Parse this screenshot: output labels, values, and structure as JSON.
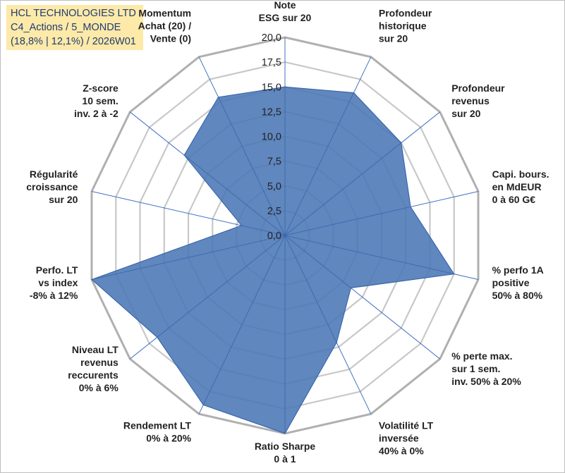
{
  "header": {
    "line1": "HCL TECHNOLOGIES LTD",
    "line2": "C4_Actions / 5_MONDE",
    "line3": "(18,8% | 12,1%) / 2026W01"
  },
  "colors": {
    "area_fill": "#4a76b5",
    "area_stroke": "#2f5fa8",
    "spoke": "#4472c4",
    "grid": "#c8c8c8",
    "outer_grid": "#b0b0b0",
    "title_bg": "#fde9a8",
    "title_text": "#1f3c72",
    "label_text": "#222222"
  },
  "chart_data": {
    "type": "radar",
    "rmin": 0,
    "rmax": 20,
    "ticks": [
      "0,0",
      "2,5",
      "5,0",
      "7,5",
      "10,0",
      "12,5",
      "15,0",
      "17,5",
      "20,0"
    ],
    "tick_values": [
      0,
      2.5,
      5,
      7.5,
      10,
      12.5,
      15,
      17.5,
      20
    ],
    "axes": [
      {
        "label": [
          "Note",
          "ESG sur 20"
        ],
        "value": 15.0
      },
      {
        "label": [
          "Profondeur",
          "historique",
          "sur 20"
        ],
        "value": 16.0
      },
      {
        "label": [
          "Profondeur",
          "revenus",
          "sur 20"
        ],
        "value": 15.0
      },
      {
        "label": [
          "Capi. bours.",
          "en MdEUR",
          "0 à 60 G€"
        ],
        "value": 13.0
      },
      {
        "label": [
          "% perfo 1A",
          "positive",
          "50% à 80%"
        ],
        "value": 17.5
      },
      {
        "label": [
          "% perte max.",
          "sur 1 sem.",
          "inv. 50% à 20%"
        ],
        "value": 8.5
      },
      {
        "label": [
          "Volatilité LT",
          "inversée",
          "40% à 0%"
        ],
        "value": 12.0
      },
      {
        "label": [
          "Ratio Sharpe",
          "0 à 1"
        ],
        "value": 20.0
      },
      {
        "label": [
          "Rendement LT",
          "0% à 20%"
        ],
        "value": 19.0
      },
      {
        "label": [
          "Niveau LT",
          "revenus",
          "reccurents",
          "0% à 6%"
        ],
        "value": 16.5
      },
      {
        "label": [
          "Perfo. LT",
          "vs index",
          "-8% à 12%"
        ],
        "value": 20.0
      },
      {
        "label": [
          "Régularité",
          "croissance",
          "sur 20"
        ],
        "value": 4.5
      },
      {
        "label": [
          "Z-score",
          "10 sem.",
          "inv. 2 à -2"
        ],
        "value": 13.0
      },
      {
        "label": [
          "Momentum",
          "Achat (20) /",
          "Vente (0)"
        ],
        "value": 15.5
      }
    ]
  }
}
